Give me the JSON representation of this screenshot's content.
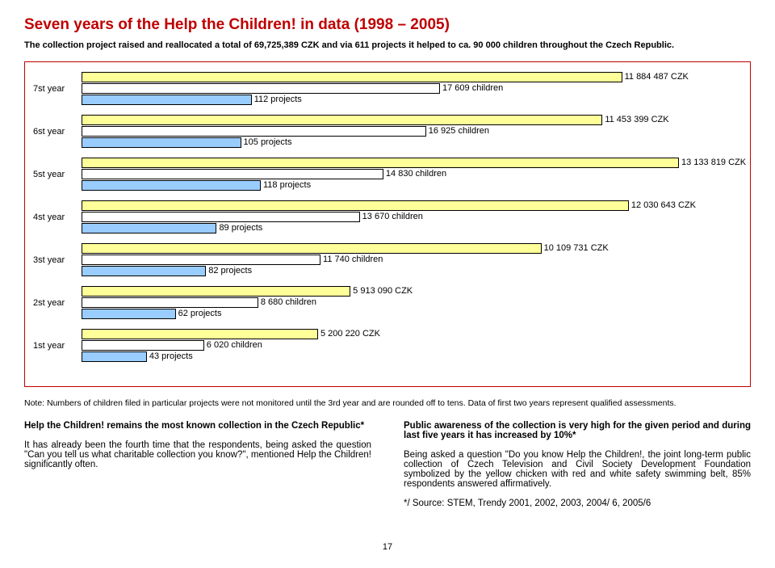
{
  "title": "Seven years of the Help the Children! in data (1998 – 2005)",
  "subtitle": "The collection project raised and reallocated a total of 69,725,389 CZK and via 611 projects it helped to ca. 90 000 children throughout the Czech Republic.",
  "chart": {
    "max_czk": 13133819,
    "max_children": 17609,
    "max_projects": 118,
    "colors": {
      "czk": "#ffff99",
      "children": "#ffffff",
      "projects": "#99ccff",
      "border": "#000000"
    },
    "years": [
      {
        "label": "7st year",
        "czk": 11884487,
        "czk_label": "11 884 487 CZK",
        "children": 17609,
        "children_label": "17 609 children",
        "projects": 112,
        "projects_label": "112 projects"
      },
      {
        "label": "6st year",
        "czk": 11453399,
        "czk_label": "11 453 399 CZK",
        "children": 16925,
        "children_label": "16 925 children",
        "projects": 105,
        "projects_label": "105 projects"
      },
      {
        "label": "5st year",
        "czk": 13133819,
        "czk_label": "13 133 819 CZK",
        "children": 14830,
        "children_label": "14 830 children",
        "projects": 118,
        "projects_label": "118 projects"
      },
      {
        "label": "4st year",
        "czk": 12030643,
        "czk_label": "12 030 643 CZK",
        "children": 13670,
        "children_label": "13 670 children",
        "projects": 89,
        "projects_label": "89 projects"
      },
      {
        "label": "3st year",
        "czk": 10109731,
        "czk_label": "10 109 731 CZK",
        "children": 11740,
        "children_label": "11 740 children",
        "projects": 82,
        "projects_label": "82 projects"
      },
      {
        "label": "2st year",
        "czk": 5913090,
        "czk_label": "5 913 090 CZK",
        "children": 8680,
        "children_label": "8 680 children",
        "projects": 62,
        "projects_label": "62 projects"
      },
      {
        "label": "1st year",
        "czk": 5200220,
        "czk_label": "5 200 220 CZK",
        "children": 6020,
        "children_label": "6 020 children",
        "projects": 43,
        "projects_label": "43 projects"
      }
    ],
    "bar_area_width": 740
  },
  "note": "Note: Numbers of children filed in particular projects were not monitored until the 3rd year and are rounded off to tens. Data of first two years represent qualified assessments.",
  "left_col": {
    "heading": "Help the Children! remains the most known collection in the Czech Republic*",
    "para": "It has already been the fourth time that the respondents, being asked the question \"Can you tell us what charitable collection you know?\", mentioned Help the Children! significantly often."
  },
  "right_col": {
    "heading": "Public awareness of the collection is very high for the given period and during last five years it has increased by 10%*",
    "para1": "Being asked a question \"Do you know Help the Children!, the joint long-term public collection of Czech Television and Civil Society Development Foundation symbolized by the yellow chicken with red and white safety swimming belt, 85% respondents answered affirmatively.",
    "para2": "*/ Source: STEM, Trendy 2001, 2002, 2003, 2004/ 6, 2005/6"
  },
  "page_num": "17"
}
